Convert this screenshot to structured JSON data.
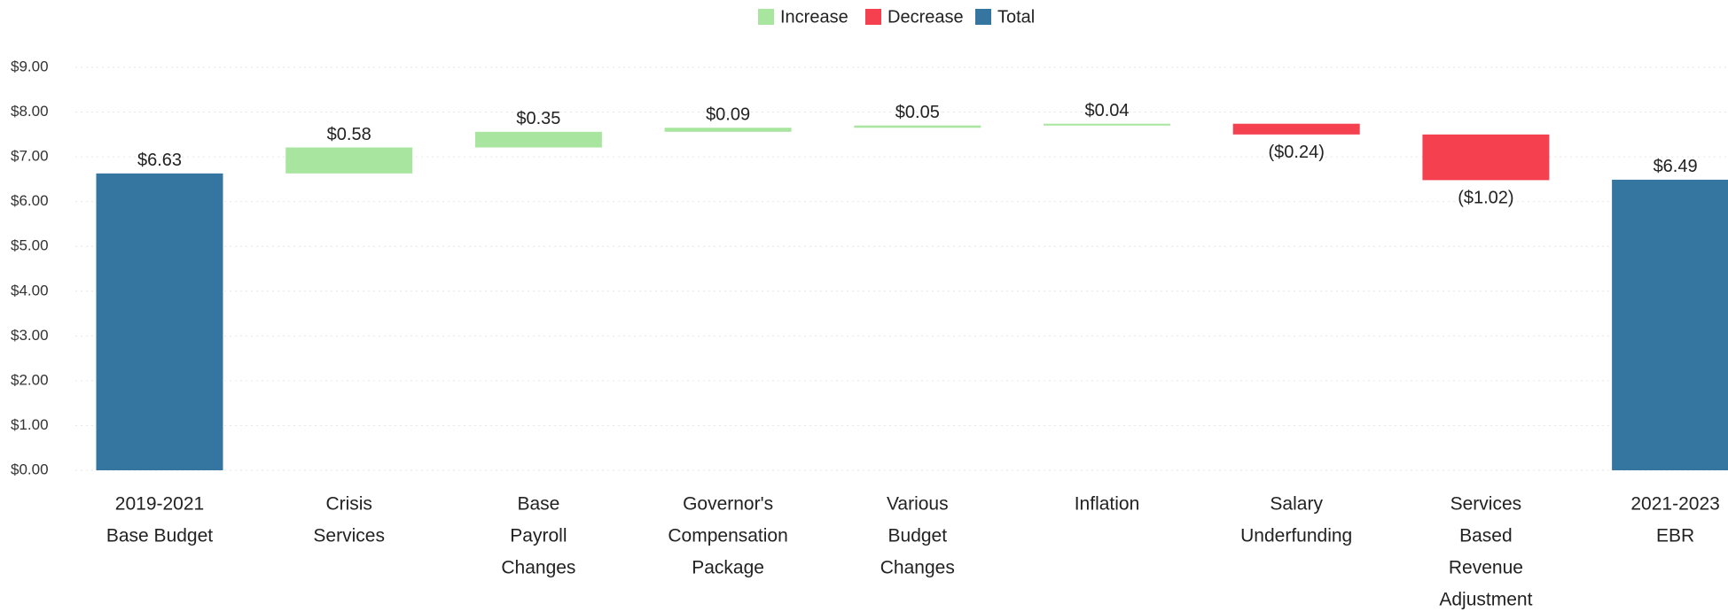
{
  "chart_data": {
    "type": "waterfall",
    "legend": [
      {
        "name": "Increase",
        "color": "#a8e6a0"
      },
      {
        "name": "Decrease",
        "color": "#f5404f"
      },
      {
        "name": "Total",
        "color": "#3476a0"
      }
    ],
    "categories": [
      [
        "2019-2021",
        "Base Budget"
      ],
      [
        "Crisis",
        "Services"
      ],
      [
        "Base",
        "Payroll",
        "Changes"
      ],
      [
        "Governor's",
        "Compensation",
        "Package"
      ],
      [
        "Various",
        "Budget",
        "Changes"
      ],
      [
        "Inflation"
      ],
      [
        "Salary",
        "Underfunding"
      ],
      [
        "Services",
        "Based",
        "Revenue",
        "Adjustment"
      ],
      [
        "2021-2023",
        "EBR"
      ]
    ],
    "measure": [
      "absolute",
      "relative",
      "relative",
      "relative",
      "relative",
      "relative",
      "relative",
      "relative",
      "absolute"
    ],
    "values": [
      6.63,
      0.58,
      0.35,
      0.09,
      0.05,
      0.04,
      -0.24,
      -1.02,
      6.49
    ],
    "value_labels": [
      "$6.63",
      "$0.58",
      "$0.35",
      "$0.09",
      "$0.05",
      "$0.04",
      "($0.24)",
      "($1.02)",
      "$6.49"
    ],
    "ylim": [
      0,
      9
    ],
    "yticks": [
      {
        "value": 0,
        "label": "$0.00"
      },
      {
        "value": 1,
        "label": "$1.00"
      },
      {
        "value": 2,
        "label": "$2.00"
      },
      {
        "value": 3,
        "label": "$3.00"
      },
      {
        "value": 4,
        "label": "$4.00"
      },
      {
        "value": 5,
        "label": "$5.00"
      },
      {
        "value": 6,
        "label": "$6.00"
      },
      {
        "value": 7,
        "label": "$7.00"
      },
      {
        "value": 8,
        "label": "$8.00"
      },
      {
        "value": 9,
        "label": "$9.00"
      }
    ],
    "grid": true
  }
}
